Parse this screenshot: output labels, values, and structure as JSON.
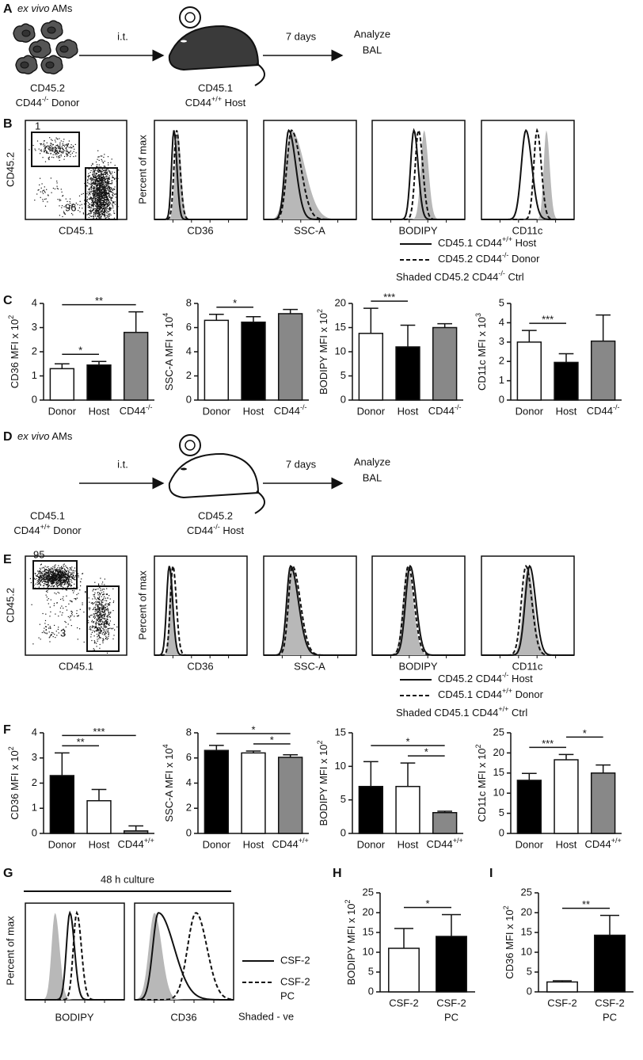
{
  "panels": {
    "A": {
      "label": "A",
      "title": {
        "italic": "ex vivo",
        "text": " AMs"
      },
      "step1": "i.t.",
      "step2": "7 days",
      "end": [
        "Analyze",
        "BAL"
      ],
      "donor": [
        "CD45.2",
        {
          "text": "CD44",
          "sup": "-/-",
          "rest": " Donor"
        }
      ],
      "host": [
        "CD45.1",
        {
          "text": "CD44",
          "sup": "+/+",
          "rest": " Host"
        }
      ]
    },
    "B": {
      "label": "B",
      "dot_ylabel": "CD45.2",
      "dot_xlabel": "CD45.1",
      "gates": [
        "1",
        "96"
      ],
      "hist_ylabel": "Percent of max",
      "hist_xlabels": [
        "CD36",
        "SSC-A",
        "BODIPY",
        "CD11c"
      ],
      "legend": [
        {
          "style": "solid",
          "text": {
            "text": "CD45.1 CD44",
            "sup": "+/+",
            "rest": " Host"
          }
        },
        {
          "style": "dashed",
          "text": {
            "text": "CD45.2 CD44",
            "sup": "-/-",
            "rest": " Donor"
          }
        },
        {
          "style": "none",
          "text": {
            "text": "Shaded CD45.2 CD44",
            "sup": "-/-",
            "rest": " Ctrl"
          }
        }
      ]
    },
    "C": {
      "label": "C"
    },
    "D": {
      "label": "D",
      "title": {
        "italic": "ex vivo",
        "text": " AMs"
      },
      "step1": "i.t.",
      "step2": "7 days",
      "end": [
        "Analyze",
        "BAL"
      ],
      "donor": [
        "CD45.1",
        {
          "text": "CD44",
          "sup": "+/+",
          "rest": " Donor"
        }
      ],
      "host": [
        "CD45.2",
        {
          "text": "CD44",
          "sup": "-/-",
          "rest": " Host"
        }
      ]
    },
    "E": {
      "label": "E",
      "dot_ylabel": "CD45.2",
      "dot_xlabel": "CD45.1",
      "gates": [
        "95",
        "3"
      ],
      "hist_ylabel": "Percent of max",
      "hist_xlabels": [
        "CD36",
        "SSC-A",
        "BODIPY",
        "CD11c"
      ],
      "legend": [
        {
          "style": "solid",
          "text": {
            "text": "CD45.2 CD44",
            "sup": "-/-",
            "rest": " Host"
          }
        },
        {
          "style": "dashed",
          "text": {
            "text": "CD45.1 CD44",
            "sup": "+/+",
            "rest": " Donor"
          }
        },
        {
          "style": "none",
          "text": {
            "text": "Shaded CD45.1 CD44",
            "sup": "+/+",
            "rest": " Ctrl"
          }
        }
      ]
    },
    "F": {
      "label": "F"
    },
    "G": {
      "label": "G",
      "header": "48 h culture",
      "hist_ylabel": "Percent of max",
      "hist_xlabels": [
        "BODIPY",
        "CD36"
      ],
      "legend": [
        {
          "style": "solid",
          "text": "CSF-2"
        },
        {
          "style": "dashed",
          "text": [
            "CSF-2",
            "PC"
          ]
        },
        {
          "style": "none",
          "text": "Shaded - ve"
        }
      ]
    },
    "H": {
      "label": "H"
    },
    "I": {
      "label": "I"
    }
  },
  "chart_data": [
    {
      "type": "bar",
      "ylabel": {
        "text": "CD36 MFI x 10",
        "sup": "2"
      },
      "categories": [
        "Donor",
        "Host",
        {
          "text": "CD44",
          "sup": "-/-"
        }
      ],
      "values": [
        1.3,
        1.45,
        2.8
      ],
      "errors": [
        0.2,
        0.15,
        0.85
      ],
      "colors": [
        "#ffffff",
        "#000000",
        "#888888"
      ],
      "ylim": [
        0,
        4
      ],
      "yticks": [
        0,
        1,
        2,
        3,
        4
      ],
      "significance": [
        {
          "pair": [
            0,
            1
          ],
          "label": "*"
        },
        {
          "pair": [
            0,
            2
          ],
          "label": "**"
        }
      ]
    },
    {
      "type": "bar",
      "ylabel": {
        "text": "SSC-A MFI x 10",
        "sup": "4"
      },
      "categories": [
        "Donor",
        "Host",
        {
          "text": "CD44",
          "sup": "-/-"
        }
      ],
      "values": [
        6.6,
        6.45,
        7.15
      ],
      "errors": [
        0.5,
        0.45,
        0.35
      ],
      "colors": [
        "#ffffff",
        "#000000",
        "#888888"
      ],
      "ylim": [
        0,
        8
      ],
      "yticks": [
        0,
        2,
        4,
        6,
        8
      ],
      "significance": [
        {
          "pair": [
            0,
            1
          ],
          "label": "*"
        }
      ]
    },
    {
      "type": "bar",
      "ylabel": {
        "text": "BODIPY MFI x 10",
        "sup": "2"
      },
      "categories": [
        "Donor",
        "Host",
        {
          "text": "CD44",
          "sup": "-/-"
        }
      ],
      "values": [
        13.8,
        11,
        15
      ],
      "errors": [
        5.2,
        4.5,
        0.8
      ],
      "colors": [
        "#ffffff",
        "#000000",
        "#888888"
      ],
      "ylim": [
        0,
        20
      ],
      "yticks": [
        0,
        5,
        10,
        15,
        20
      ],
      "significance": [
        {
          "pair": [
            0,
            1
          ],
          "label": "***"
        }
      ]
    },
    {
      "type": "bar",
      "ylabel": {
        "text": "CD11c MFI x 10",
        "sup": "3"
      },
      "categories": [
        "Donor",
        "Host",
        {
          "text": "CD44",
          "sup": "-/-"
        }
      ],
      "values": [
        3.0,
        1.95,
        3.05
      ],
      "errors": [
        0.6,
        0.45,
        1.35
      ],
      "colors": [
        "#ffffff",
        "#000000",
        "#888888"
      ],
      "ylim": [
        0,
        5
      ],
      "yticks": [
        0,
        1,
        2,
        3,
        4,
        5
      ],
      "significance": [
        {
          "pair": [
            0,
            1
          ],
          "label": "***"
        }
      ]
    },
    {
      "type": "bar",
      "ylabel": {
        "text": "CD36 MFI x 10",
        "sup": "2"
      },
      "categories": [
        "Donor",
        "Host",
        {
          "text": "CD44",
          "sup": "+/+"
        }
      ],
      "values": [
        2.3,
        1.3,
        0.1
      ],
      "errors": [
        0.9,
        0.45,
        0.2
      ],
      "colors": [
        "#000000",
        "#ffffff",
        "#888888"
      ],
      "ylim": [
        0,
        4
      ],
      "yticks": [
        0,
        1,
        2,
        3,
        4
      ],
      "significance": [
        {
          "pair": [
            0,
            1
          ],
          "label": "**"
        },
        {
          "pair": [
            0,
            2
          ],
          "label": "***"
        }
      ]
    },
    {
      "type": "bar",
      "ylabel": {
        "text": "SSC-A MFI x 10",
        "sup": "4"
      },
      "categories": [
        "Donor",
        "Host",
        {
          "text": "CD44",
          "sup": "+/+"
        }
      ],
      "values": [
        6.6,
        6.4,
        6.05
      ],
      "errors": [
        0.4,
        0.15,
        0.2
      ],
      "colors": [
        "#000000",
        "#ffffff",
        "#888888"
      ],
      "ylim": [
        0,
        8
      ],
      "yticks": [
        0,
        2,
        4,
        6,
        8
      ],
      "significance": [
        {
          "pair": [
            1,
            2
          ],
          "label": "*"
        },
        {
          "pair": [
            0,
            2
          ],
          "label": "*"
        }
      ]
    },
    {
      "type": "bar",
      "ylabel": {
        "text": "BODIPY MFI x 10",
        "sup": "2"
      },
      "categories": [
        "Donor",
        "Host",
        {
          "text": "CD44",
          "sup": "+/+"
        }
      ],
      "values": [
        7,
        7,
        3.1
      ],
      "errors": [
        3.7,
        3.5,
        0.2
      ],
      "colors": [
        "#000000",
        "#ffffff",
        "#888888"
      ],
      "ylim": [
        0,
        15
      ],
      "yticks": [
        0,
        5,
        10,
        15
      ],
      "significance": [
        {
          "pair": [
            1,
            2
          ],
          "label": "*"
        },
        {
          "pair": [
            0,
            2
          ],
          "label": "*"
        }
      ]
    },
    {
      "type": "bar",
      "ylabel": {
        "text": "CD11c MFI x 10",
        "sup": "2"
      },
      "categories": [
        "Donor",
        "Host",
        {
          "text": "CD44",
          "sup": "+/+"
        }
      ],
      "values": [
        13.2,
        18.3,
        15
      ],
      "errors": [
        1.7,
        1.3,
        2
      ],
      "colors": [
        "#000000",
        "#ffffff",
        "#888888"
      ],
      "ylim": [
        0,
        25
      ],
      "yticks": [
        0,
        5,
        10,
        15,
        20,
        25
      ],
      "significance": [
        {
          "pair": [
            0,
            1
          ],
          "label": "***"
        },
        {
          "pair": [
            1,
            2
          ],
          "label": "*"
        }
      ]
    },
    {
      "type": "bar",
      "ylabel": {
        "text": "BODIPY MFI x 10",
        "sup": "2"
      },
      "categories": [
        "CSF-2",
        [
          "CSF-2",
          "PC"
        ]
      ],
      "values": [
        11,
        14
      ],
      "errors": [
        5,
        5.5
      ],
      "colors": [
        "#ffffff",
        "#000000"
      ],
      "ylim": [
        0,
        25
      ],
      "yticks": [
        0,
        5,
        10,
        15,
        20,
        25
      ],
      "significance": [
        {
          "pair": [
            0,
            1
          ],
          "label": "*"
        }
      ]
    },
    {
      "type": "bar",
      "ylabel": {
        "text": "CD36 MFI x 10",
        "sup": "2"
      },
      "categories": [
        "CSF-2",
        [
          "CSF-2",
          "PC"
        ]
      ],
      "values": [
        2.5,
        14.3
      ],
      "errors": [
        0.3,
        5
      ],
      "colors": [
        "#ffffff",
        "#000000"
      ],
      "ylim": [
        0,
        25
      ],
      "yticks": [
        0,
        5,
        10,
        15,
        20,
        25
      ],
      "significance": [
        {
          "pair": [
            0,
            1
          ],
          "label": "**"
        }
      ]
    }
  ]
}
